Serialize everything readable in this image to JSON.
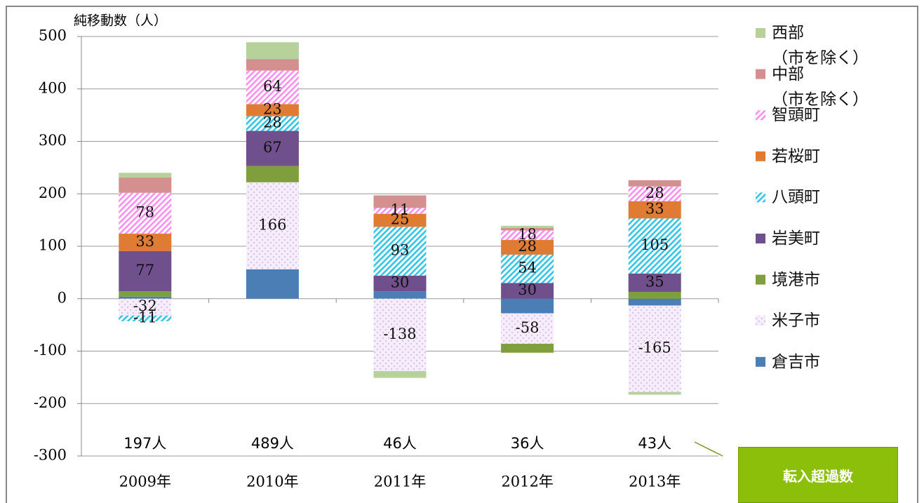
{
  "chart_data": {
    "type": "stacked_bar",
    "y_axis_label": "純移動数（人）",
    "categories": [
      "2009年",
      "2010年",
      "2011年",
      "2012年",
      "2013年"
    ],
    "ylim": [
      -300,
      500
    ],
    "yticks": [
      -300,
      -200,
      -100,
      0,
      100,
      200,
      300,
      400,
      500
    ],
    "grid": true,
    "series": [
      {
        "name": "倉吉市",
        "color": "#4a7eb5",
        "pattern": "solid",
        "values": [
          4,
          56,
          14,
          -28,
          -13
        ],
        "value_labels": [
          null,
          null,
          null,
          null,
          null
        ]
      },
      {
        "name": "米子市",
        "color": "#d9bfe8",
        "pattern": "dots",
        "values": [
          -32,
          166,
          -138,
          -58,
          -165
        ],
        "value_labels": [
          "-32",
          "166",
          "-138",
          "-58",
          "-165"
        ]
      },
      {
        "name": "境港市",
        "color": "#7f9e3c",
        "pattern": "solid",
        "values": [
          10,
          31,
          0,
          -17,
          13
        ],
        "value_labels": [
          null,
          null,
          null,
          null,
          null
        ]
      },
      {
        "name": "岩美町",
        "color": "#6f4f8c",
        "pattern": "solid",
        "values": [
          77,
          67,
          30,
          30,
          35
        ],
        "value_labels": [
          "77",
          "67",
          "30",
          "30",
          "35"
        ]
      },
      {
        "name": "八頭町",
        "color": "#33c5e8",
        "pattern": "hatch",
        "values": [
          -11,
          28,
          93,
          54,
          105
        ],
        "value_labels": [
          "-11",
          "28",
          "93",
          "54",
          "105"
        ]
      },
      {
        "name": "若桜町",
        "color": "#e07b34",
        "pattern": "solid",
        "values": [
          33,
          23,
          25,
          28,
          33
        ],
        "value_labels": [
          "33",
          "23",
          "25",
          "28",
          "33"
        ]
      },
      {
        "name": "智頭町",
        "color": "#ff8fee",
        "pattern": "hatch",
        "values": [
          78,
          64,
          11,
          18,
          28
        ],
        "value_labels": [
          "78",
          "64",
          "11",
          "18",
          "28"
        ]
      },
      {
        "name": "中部\n（市を除く）",
        "color": "#d48f8f",
        "pattern": "solid",
        "values": [
          29,
          22,
          24,
          5,
          12
        ],
        "value_labels": [
          null,
          null,
          null,
          null,
          null
        ]
      },
      {
        "name": "西部\n（市を除く）",
        "color": "#b6d19a",
        "pattern": "solid",
        "values": [
          9,
          32,
          -13,
          4,
          -5
        ],
        "value_labels": [
          null,
          null,
          null,
          null,
          null
        ]
      }
    ],
    "annotations": [
      "197人",
      "489人",
      "46人",
      "36人",
      "43人"
    ],
    "callout": "転入超過数"
  }
}
